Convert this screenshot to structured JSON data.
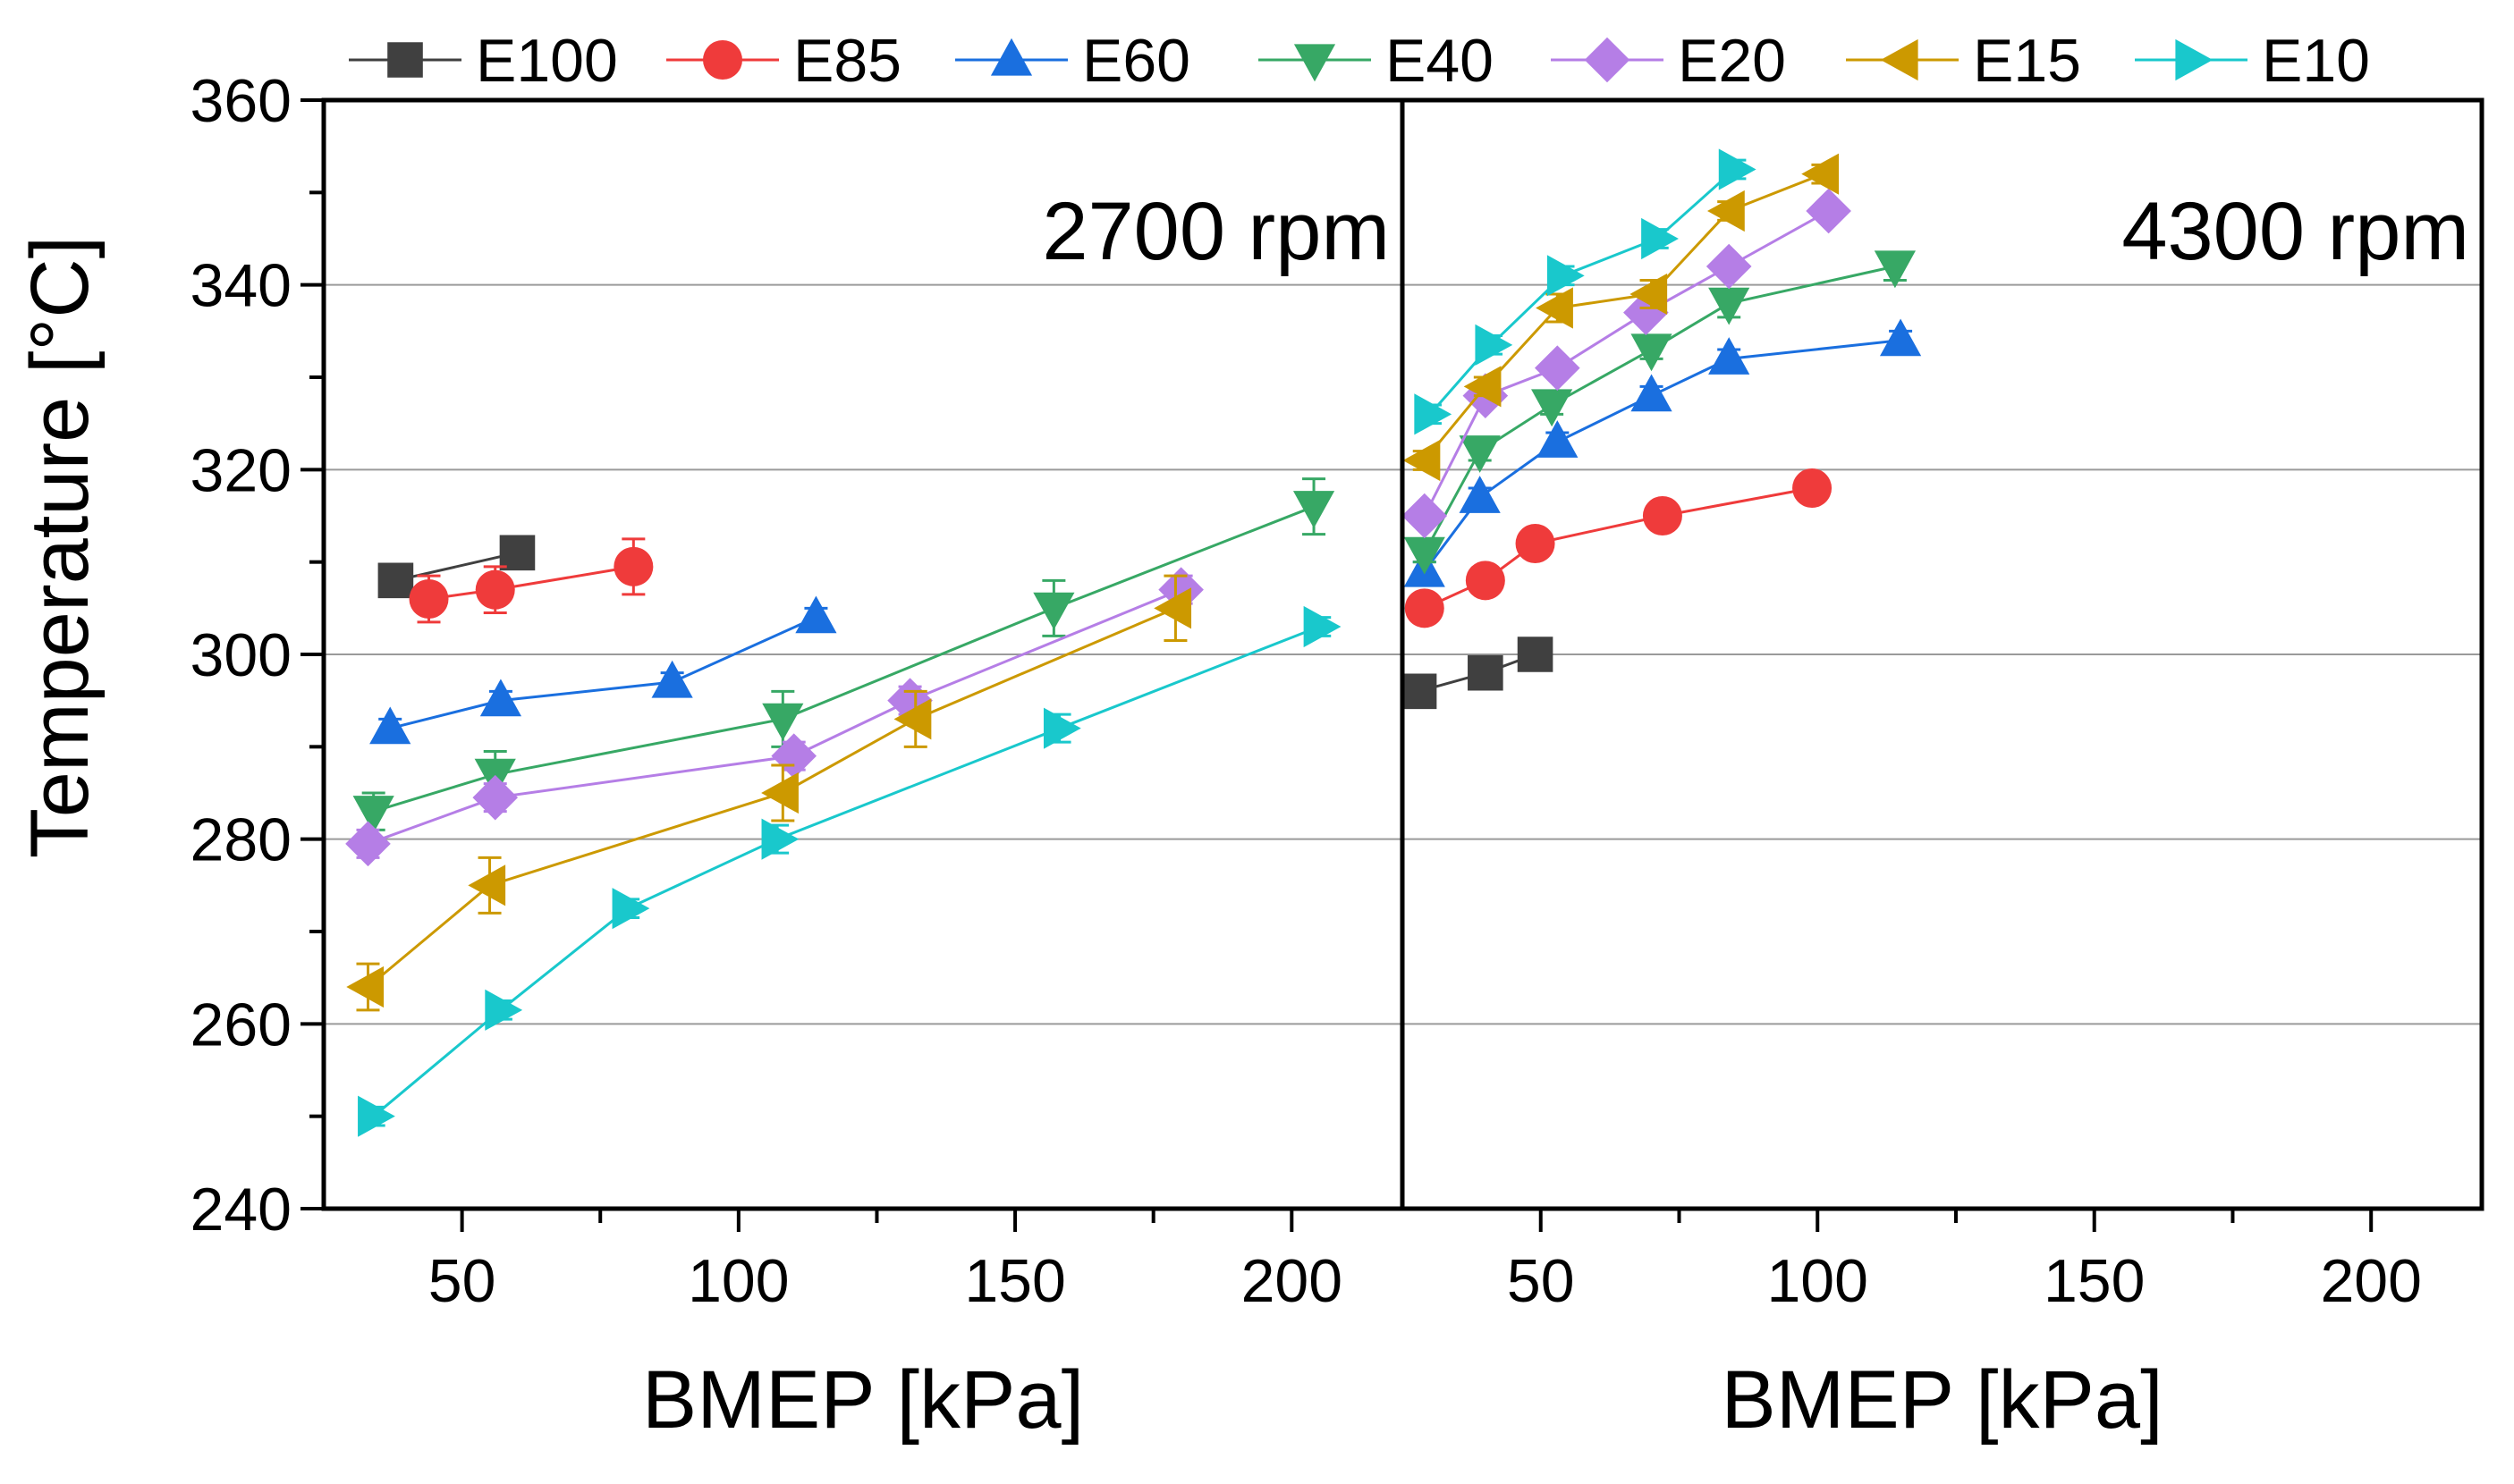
{
  "legend": {
    "placement": "top",
    "entries": [
      {
        "name": "E100",
        "color": "#404040",
        "marker": "square"
      },
      {
        "name": "E85",
        "color": "#ef3b3b",
        "marker": "circle"
      },
      {
        "name": "E60",
        "color": "#1a6fdf",
        "marker": "triangle-up"
      },
      {
        "name": "E40",
        "color": "#37a865",
        "marker": "triangle-down"
      },
      {
        "name": "E20",
        "color": "#b57ee6",
        "marker": "diamond"
      },
      {
        "name": "E15",
        "color": "#cc9900",
        "marker": "triangle-left"
      },
      {
        "name": "E10",
        "color": "#19c8cc",
        "marker": "triangle-right"
      }
    ]
  },
  "ylabel": "Temperature [°C]",
  "chart_data": [
    {
      "type": "line",
      "annotation": "2700 rpm",
      "xlabel": "BMEP [kPa]",
      "ylabel": "Temperature [°C]",
      "xlim": [
        25,
        220
      ],
      "ylim": [
        240,
        360
      ],
      "xticks": [
        "50",
        "100",
        "150",
        "200"
      ],
      "yticks": [
        "240",
        "260",
        "280",
        "300",
        "320",
        "340",
        "360"
      ],
      "grid": "horizontal",
      "series": [
        {
          "name": "E100",
          "x": [
            38,
            60
          ],
          "y": [
            308,
            311
          ],
          "err": [
            0.8,
            0.8
          ]
        },
        {
          "name": "E85",
          "x": [
            44,
            56,
            81
          ],
          "y": [
            306,
            307,
            309.5
          ],
          "err": [
            2.5,
            2.5,
            3
          ]
        },
        {
          "name": "E60",
          "x": [
            37,
            57,
            88,
            114
          ],
          "y": [
            292,
            295,
            297,
            304
          ],
          "err": [
            1,
            1,
            1,
            1
          ]
        },
        {
          "name": "E40",
          "x": [
            34,
            56,
            108,
            157,
            204
          ],
          "y": [
            283,
            287,
            293,
            305,
            316
          ],
          "err": [
            2,
            2.5,
            3,
            3,
            3
          ]
        },
        {
          "name": "E20",
          "x": [
            33,
            56,
            110,
            131,
            180
          ],
          "y": [
            279.5,
            284.5,
            289,
            295,
            307
          ],
          "err": [
            1.5,
            1.5,
            1.5,
            1.5,
            1.5
          ]
        },
        {
          "name": "E15",
          "x": [
            33,
            55,
            108,
            132,
            179
          ],
          "y": [
            264,
            275,
            285,
            293,
            305
          ],
          "err": [
            2.5,
            3,
            3,
            3,
            3.5
          ]
        },
        {
          "name": "E10",
          "x": [
            34,
            57,
            80,
            107,
            158,
            205
          ],
          "y": [
            250,
            261.5,
            272.5,
            280,
            292,
            303
          ],
          "err": [
            1,
            1,
            1,
            1.5,
            1.5,
            1
          ]
        }
      ]
    },
    {
      "type": "line",
      "annotation": "4300 rpm",
      "xlabel": "BMEP [kPa]",
      "ylabel": "Temperature [°C]",
      "xlim": [
        25,
        220
      ],
      "ylim": [
        240,
        360
      ],
      "xticks": [
        "50",
        "100",
        "150",
        "200"
      ],
      "yticks": [
        "240",
        "260",
        "280",
        "300",
        "320",
        "340",
        "360"
      ],
      "grid": "horizontal",
      "series": [
        {
          "name": "E100",
          "x": [
            28,
            40,
            49
          ],
          "y": [
            296,
            298,
            300
          ],
          "err": [
            0.5,
            0.5,
            0.5
          ]
        },
        {
          "name": "E85",
          "x": [
            29,
            40,
            49,
            72,
            99
          ],
          "y": [
            305,
            308,
            312,
            315,
            318
          ],
          "err": [
            1.5,
            1.5,
            1.5,
            1.5,
            1.5
          ]
        },
        {
          "name": "E60",
          "x": [
            29,
            39,
            53,
            70,
            84,
            115
          ],
          "y": [
            309,
            317,
            323,
            328,
            332,
            334
          ],
          "err": [
            1,
            1,
            1,
            1,
            1,
            1
          ]
        },
        {
          "name": "E40",
          "x": [
            29,
            39,
            52,
            70,
            84,
            114
          ],
          "y": [
            311,
            322,
            327,
            333,
            338,
            342
          ],
          "err": [
            1,
            1,
            1,
            1,
            1.5,
            1.5
          ]
        },
        {
          "name": "E20",
          "x": [
            29,
            40,
            53,
            69,
            84,
            102
          ],
          "y": [
            315,
            328,
            331,
            337,
            342,
            348
          ],
          "err": [
            1,
            1,
            1,
            1,
            1,
            1
          ]
        },
        {
          "name": "E15",
          "x": [
            29,
            40,
            53,
            70,
            84,
            101
          ],
          "y": [
            321,
            329,
            337.5,
            339,
            348,
            352
          ],
          "err": [
            1,
            1,
            1.5,
            1.5,
            1,
            1
          ]
        },
        {
          "name": "E10",
          "x": [
            30,
            41,
            54,
            71,
            85
          ],
          "y": [
            326,
            333.5,
            341,
            345,
            352.5
          ],
          "err": [
            1,
            1,
            1,
            1,
            1
          ]
        }
      ]
    }
  ]
}
